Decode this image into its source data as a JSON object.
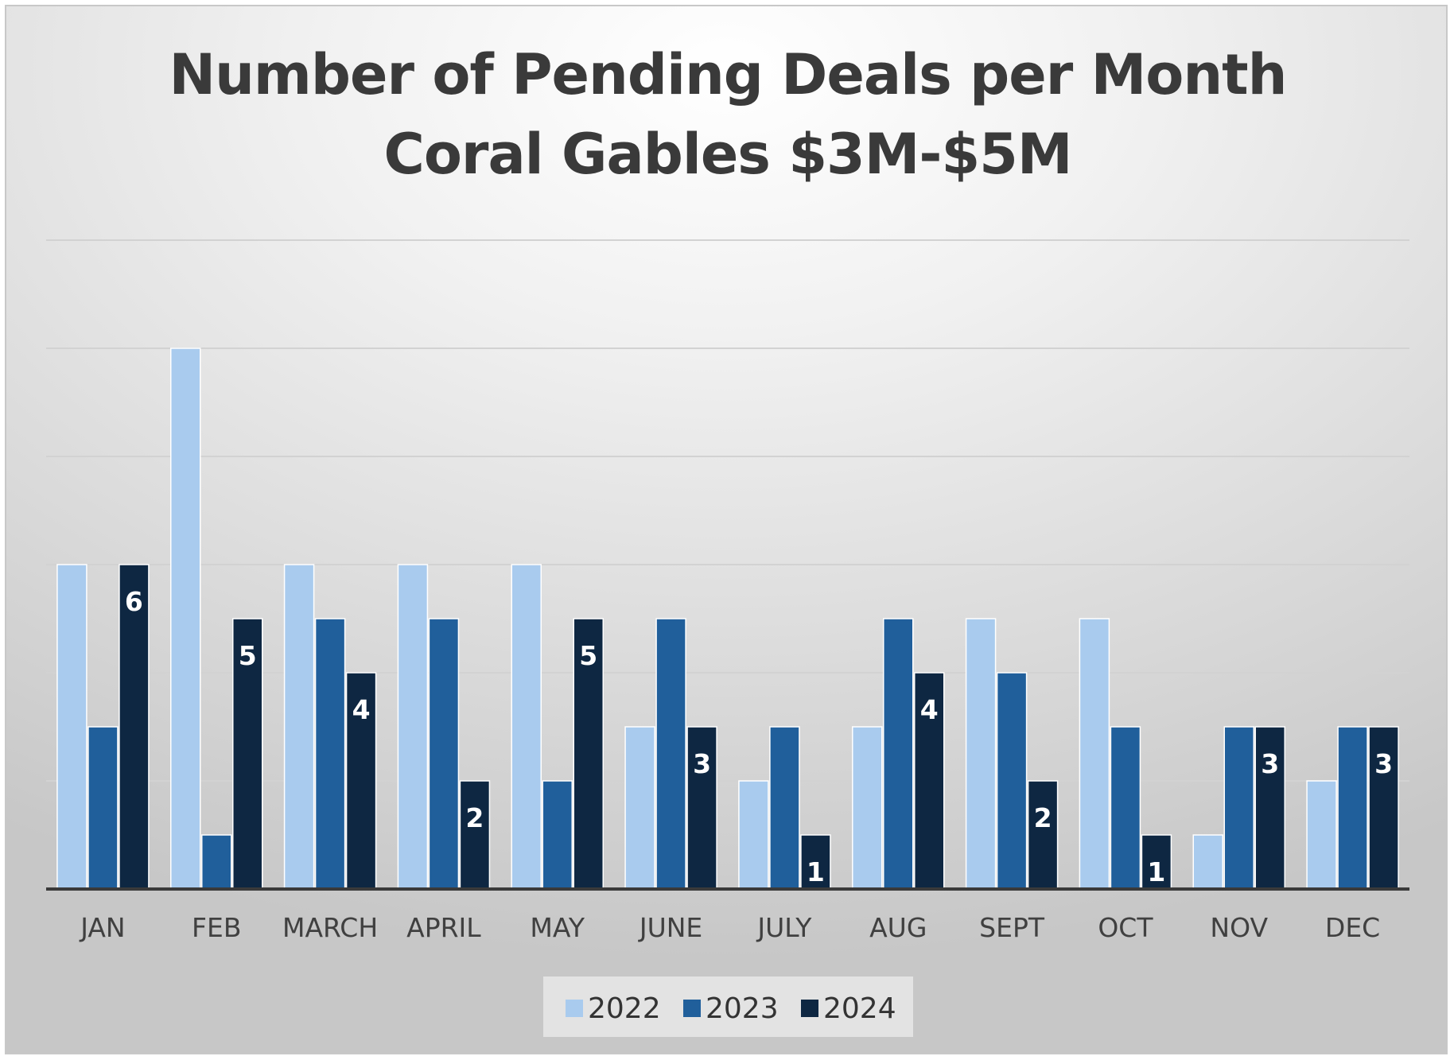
{
  "chart_data": {
    "type": "bar",
    "title": "Number of Pending Deals per Month",
    "subtitle": "Coral Gables $3M-$5M",
    "xlabel": "",
    "ylabel": "",
    "categories": [
      "JAN",
      "FEB",
      "MARCH",
      "APRIL",
      "MAY",
      "JUNE",
      "JULY",
      "AUG",
      "SEPT",
      "OCT",
      "NOV",
      "DEC"
    ],
    "series": [
      {
        "name": "2022",
        "color": "#a9cbee",
        "values": [
          6,
          10,
          6,
          6,
          6,
          3,
          2,
          3,
          5,
          5,
          1,
          2
        ]
      },
      {
        "name": "2023",
        "color": "#205f9b",
        "values": [
          3,
          1,
          5,
          5,
          2,
          5,
          3,
          5,
          4,
          3,
          3,
          3
        ]
      },
      {
        "name": "2024",
        "color": "#0e2742",
        "values": [
          6,
          5,
          4,
          2,
          5,
          3,
          1,
          4,
          2,
          1,
          3,
          3
        ],
        "data_labels": true
      }
    ],
    "ylim": [
      0,
      12
    ],
    "y_gridlines": [
      2,
      4,
      6,
      8,
      10,
      12
    ],
    "y_axis_labels_shown": false,
    "grid": true,
    "legend_position": "bottom"
  }
}
